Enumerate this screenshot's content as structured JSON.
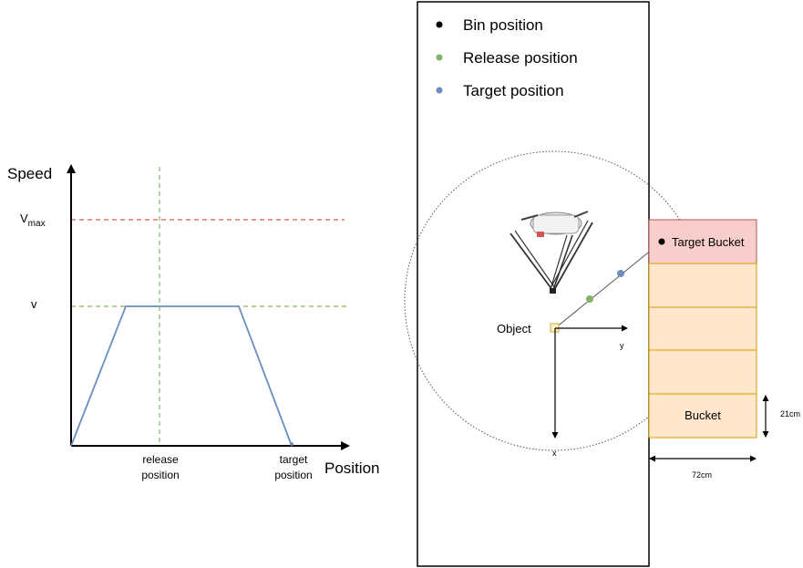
{
  "speed_chart": {
    "y_axis_label": "Speed",
    "x_axis_label": "Position",
    "vmax_label_main": "V",
    "vmax_label_sub": "max",
    "v_label": "v",
    "release_label_line1": "release",
    "release_label_line2": "position",
    "target_label_line1": "target",
    "target_label_line2": "position",
    "colors": {
      "profile": "#6c8ebf",
      "vmax_line": "#d9534f",
      "v_line": "#82b366",
      "release_line": "#82b366",
      "axis": "#000000"
    }
  },
  "workspace": {
    "legend": [
      {
        "label": "Bin position",
        "color": "#000000"
      },
      {
        "label": "Release position",
        "color": "#82b366"
      },
      {
        "label": "Target position",
        "color": "#6c8ebf"
      }
    ],
    "object_label": "Object",
    "axis_y_label": "y",
    "axis_x_label": "x",
    "robot_icon": "delta-robot-icon"
  },
  "buckets": {
    "target_label": "Target Bucket",
    "bucket_label": "Bucket",
    "height_label": "21cm",
    "width_label": "72cm",
    "target_fill": "#f8cecc",
    "target_stroke": "#b85450",
    "bucket_fill": "#ffe6cc",
    "bucket_stroke": "#d79b00"
  }
}
